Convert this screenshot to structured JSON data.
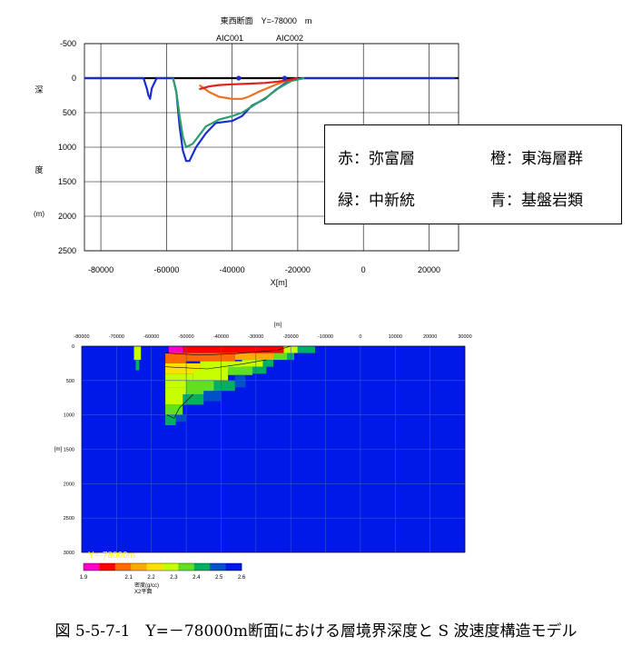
{
  "chart_data": [
    {
      "type": "line",
      "title": "東西断面　Y=-78000　m",
      "xlabel": "X[m]",
      "ylabel_chars": [
        "深",
        "度",
        "(m)"
      ],
      "xlim": [
        -85000,
        29000
      ],
      "ylim": [
        2500,
        -500
      ],
      "xticks": [
        "-80000",
        "-60000",
        "-40000",
        "-20000",
        "0",
        "20000"
      ],
      "xtick_values": [
        -80000,
        -60000,
        -40000,
        -20000,
        0,
        20000
      ],
      "yticks": [
        "-500",
        "0",
        "500",
        "1000",
        "1500",
        "2000",
        "2500"
      ],
      "ytick_values": [
        -500,
        0,
        500,
        1000,
        1500,
        2000,
        2500
      ],
      "wells": [
        {
          "name": "AIC001",
          "x": -38000,
          "y": 0
        },
        {
          "name": "AIC002",
          "x": -24000,
          "y": 0
        }
      ],
      "series": [
        {
          "color": "#1a2ecc",
          "x": [
            -85000,
            -67000,
            -66000,
            -65500,
            -65000,
            -64500,
            -63000,
            -58000,
            -57000,
            -56000,
            -55000,
            -54000,
            -53000,
            -51000,
            -48000,
            -45000,
            -40000,
            -37000,
            -34000,
            -30000,
            -27000,
            -24000,
            -21000,
            -18000,
            -14000,
            28000
          ],
          "y": [
            0,
            0,
            150,
            250,
            300,
            150,
            0,
            0,
            200,
            700,
            1050,
            1200,
            1200,
            1000,
            800,
            650,
            620,
            550,
            400,
            300,
            180,
            80,
            20,
            0,
            0,
            0
          ]
        },
        {
          "color": "#2e9e6e",
          "x": [
            -58000,
            -57000,
            -56000,
            -55000,
            -54000,
            -52000,
            -48000,
            -44000,
            -40000,
            -37000,
            -33000,
            -29000,
            -26000,
            -22000,
            -18000
          ],
          "y": [
            0,
            200,
            550,
            850,
            1000,
            950,
            700,
            600,
            550,
            500,
            380,
            260,
            150,
            40,
            0
          ]
        },
        {
          "color": "#f07020",
          "x": [
            -50000,
            -47000,
            -44000,
            -40000,
            -37000,
            -35000,
            -32000,
            -29000,
            -26000,
            -23000,
            -20000
          ],
          "y": [
            100,
            200,
            270,
            300,
            300,
            270,
            200,
            140,
            80,
            30,
            0
          ]
        },
        {
          "color": "#e0201a",
          "x": [
            -50000,
            -47000,
            -44000,
            -40000,
            -35000,
            -30000,
            -26000,
            -22000,
            -20000
          ],
          "y": [
            160,
            120,
            100,
            90,
            80,
            70,
            50,
            20,
            0
          ]
        }
      ]
    },
    {
      "type": "heatmap",
      "xlabel": "[m]",
      "ylabel": "[m]",
      "xlim": [
        -80000,
        30000
      ],
      "ylim": [
        3000,
        0
      ],
      "xticks": [
        "-80000",
        "-70000",
        "-60000",
        "-50000",
        "-40000",
        "-30000",
        "-20000",
        "-10000",
        "0",
        "10000",
        "20000",
        "30000"
      ],
      "xtick_values": [
        -80000,
        -70000,
        -60000,
        -50000,
        -40000,
        -30000,
        -20000,
        -10000,
        0,
        10000,
        20000,
        30000
      ],
      "yticks": [
        "0",
        "500",
        "1000",
        "1500",
        "2000",
        "2500",
        "3000"
      ],
      "ytick_values": [
        0,
        500,
        1000,
        1500,
        2000,
        2500,
        3000
      ],
      "section_label": "Y=-78000m",
      "colorbar": {
        "label": "密度(g/cc)",
        "sublabel": "X2平面",
        "ticks": [
          "1.9",
          "2.1",
          "2.2",
          "2.3",
          "2.4",
          "2.5",
          "2.6"
        ],
        "tick_values": [
          1.9,
          2.1,
          2.2,
          2.3,
          2.4,
          2.5,
          2.6
        ],
        "range": [
          1.9,
          2.6
        ],
        "colors": [
          "#ff00c8",
          "#ff0000",
          "#ff6a00",
          "#ffaa00",
          "#ffe000",
          "#c8ff00",
          "#60e020",
          "#00b060",
          "#0050c8",
          "#0018e8"
        ]
      },
      "background_color": "#0018e8",
      "cells": [
        {
          "x0": -65000,
          "x1": -63000,
          "y0": 0,
          "y1": 200,
          "v": 2.3
        },
        {
          "x0": -64500,
          "x1": -63500,
          "y0": 200,
          "y1": 350,
          "v": 2.45
        },
        {
          "x0": -55000,
          "x1": -51000,
          "y0": 0,
          "y1": 100,
          "v": 1.9
        },
        {
          "x0": -51000,
          "x1": -22000,
          "y0": 0,
          "y1": 100,
          "v": 2.0
        },
        {
          "x0": -22000,
          "x1": -18000,
          "y0": 0,
          "y1": 100,
          "v": 2.3
        },
        {
          "x0": -18000,
          "x1": -13000,
          "y0": 0,
          "y1": 100,
          "v": 2.45
        },
        {
          "x0": -56000,
          "x1": -50000,
          "y0": 100,
          "y1": 250,
          "v": 2.1
        },
        {
          "x0": -50000,
          "x1": -36000,
          "y0": 100,
          "y1": 220,
          "v": 2.05
        },
        {
          "x0": -36000,
          "x1": -25000,
          "y0": 100,
          "y1": 200,
          "v": 2.15
        },
        {
          "x0": -25000,
          "x1": -21000,
          "y0": 100,
          "y1": 200,
          "v": 2.35
        },
        {
          "x0": -21000,
          "x1": -19000,
          "y0": 100,
          "y1": 200,
          "v": 2.45
        },
        {
          "x0": -56000,
          "x1": -46000,
          "y0": 250,
          "y1": 400,
          "v": 2.2
        },
        {
          "x0": -46000,
          "x1": -34000,
          "y0": 220,
          "y1": 350,
          "v": 2.25
        },
        {
          "x0": -34000,
          "x1": -28000,
          "y0": 200,
          "y1": 300,
          "v": 2.3
        },
        {
          "x0": -28000,
          "x1": -25000,
          "y0": 200,
          "y1": 300,
          "v": 2.4
        },
        {
          "x0": -56000,
          "x1": -48000,
          "y0": 400,
          "y1": 600,
          "v": 2.25
        },
        {
          "x0": -48000,
          "x1": -38000,
          "y0": 350,
          "y1": 500,
          "v": 2.3
        },
        {
          "x0": -38000,
          "x1": -31000,
          "y0": 300,
          "y1": 420,
          "v": 2.35
        },
        {
          "x0": -31000,
          "x1": -27000,
          "y0": 300,
          "y1": 400,
          "v": 2.45
        },
        {
          "x0": -56000,
          "x1": -50000,
          "y0": 600,
          "y1": 850,
          "v": 2.3
        },
        {
          "x0": -50000,
          "x1": -42000,
          "y0": 500,
          "y1": 700,
          "v": 2.35
        },
        {
          "x0": -42000,
          "x1": -36000,
          "y0": 500,
          "y1": 650,
          "v": 2.45
        },
        {
          "x0": -36000,
          "x1": -33000,
          "y0": 420,
          "y1": 600,
          "v": 2.5
        },
        {
          "x0": -56000,
          "x1": -51000,
          "y0": 850,
          "y1": 1000,
          "v": 2.35
        },
        {
          "x0": -51000,
          "x1": -45000,
          "y0": 700,
          "y1": 850,
          "v": 2.45
        },
        {
          "x0": -45000,
          "x1": -40000,
          "y0": 650,
          "y1": 800,
          "v": 2.5
        },
        {
          "x0": -56000,
          "x1": -53000,
          "y0": 1000,
          "y1": 1150,
          "v": 2.45
        },
        {
          "x0": -53000,
          "x1": -50000,
          "y0": 1000,
          "y1": 1100,
          "v": 2.5
        },
        {
          "x0": -55500,
          "x1": -54500,
          "y0": 1150,
          "y1": 1350,
          "v": 2.55
        }
      ]
    }
  ],
  "legend": {
    "red": "赤：弥富層",
    "orange": "橙：東海層群",
    "green": "緑：中新統",
    "blue": "青：基盤岩類"
  },
  "caption": "図 5-5-7-1　Y=－78000m断面における層境界深度と S 波速度構造モデル"
}
